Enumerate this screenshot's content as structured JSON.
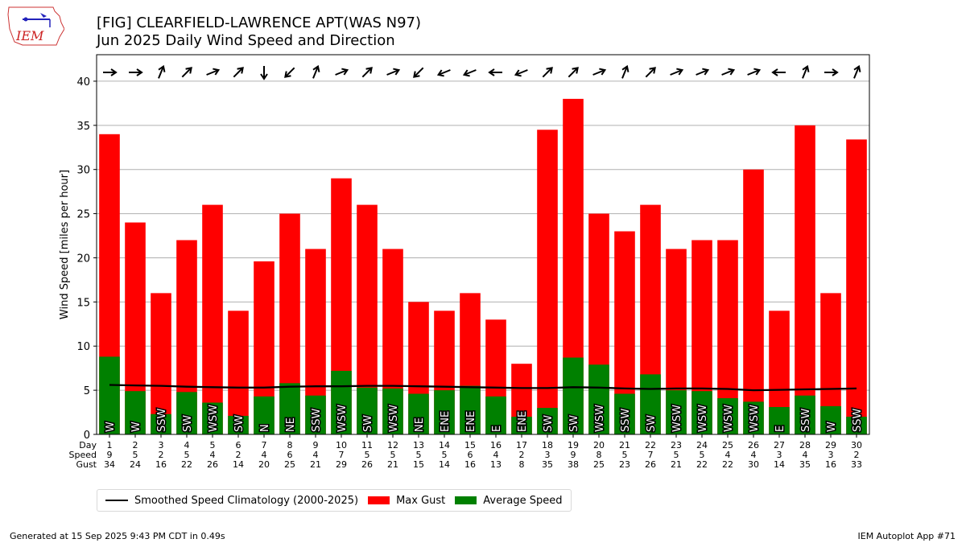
{
  "header": {
    "title_line1": "[FIG] CLEARFIELD-LAWRENCE APT(WAS N97)",
    "title_line2": "Jun 2025 Daily Wind Speed and Direction",
    "logo_text": "IEM"
  },
  "footer": {
    "left": "Generated at 15 Sep 2025 9:43 PM CDT in 0.49s",
    "right": "IEM Autoplot App #71"
  },
  "legend": {
    "climatology": "Smoothed Speed Climatology (2000-2025)",
    "gust": "Max Gust",
    "average": "Average Speed"
  },
  "chart_data": {
    "type": "bar",
    "ylabel": "Wind Speed [miles per hour]",
    "ylim": [
      0,
      43
    ],
    "yticks": [
      0,
      5,
      10,
      15,
      20,
      25,
      30,
      35,
      40
    ],
    "grid": true,
    "legend_position": "bottom",
    "row_labels": [
      "Day",
      "Speed",
      "Gust"
    ],
    "days": [
      1,
      2,
      3,
      4,
      5,
      6,
      7,
      8,
      9,
      10,
      11,
      12,
      13,
      14,
      15,
      16,
      17,
      18,
      19,
      20,
      21,
      22,
      23,
      24,
      25,
      26,
      27,
      28,
      29,
      30
    ],
    "speed_labels": [
      9,
      5,
      2,
      5,
      4,
      2,
      4,
      6,
      4,
      7,
      5,
      5,
      5,
      5,
      6,
      4,
      2,
      3,
      9,
      8,
      5,
      7,
      5,
      5,
      4,
      4,
      3,
      4,
      3,
      2
    ],
    "avg_speed": [
      8.8,
      4.9,
      2.3,
      4.8,
      3.6,
      2.1,
      4.3,
      5.8,
      4.4,
      7.2,
      5.3,
      5.2,
      4.6,
      5.0,
      5.5,
      4.3,
      2.0,
      3.0,
      8.7,
      7.9,
      4.6,
      6.8,
      5.0,
      4.9,
      4.1,
      3.7,
      3.1,
      4.4,
      3.2,
      2.0
    ],
    "max_gust": [
      34,
      24,
      16,
      22,
      26,
      14,
      19.6,
      25,
      21,
      29,
      26,
      21,
      15,
      14,
      16,
      13,
      8,
      34.5,
      38,
      25,
      23,
      26,
      21,
      22,
      22,
      30,
      14,
      35,
      16,
      33.4
    ],
    "gust_labels": [
      34,
      24,
      16,
      22,
      26,
      14,
      20,
      25,
      21,
      29,
      26,
      21,
      15,
      14,
      16,
      13,
      8,
      35,
      38,
      25,
      23,
      26,
      21,
      22,
      22,
      30,
      14,
      35,
      16,
      33
    ],
    "direction_labels": [
      "W",
      "W",
      "SSW",
      "SW",
      "WSW",
      "SW",
      "N",
      "NE",
      "SSW",
      "WSW",
      "SW",
      "WSW",
      "NE",
      "ENE",
      "ENE",
      "E",
      "ENE",
      "SW",
      "SW",
      "WSW",
      "SSW",
      "SW",
      "WSW",
      "WSW",
      "WSW",
      "WSW",
      "E",
      "SSW",
      "W",
      "SSW"
    ],
    "direction_degrees": [
      270,
      270,
      202,
      225,
      248,
      225,
      0,
      45,
      202,
      248,
      225,
      248,
      45,
      68,
      68,
      90,
      68,
      225,
      225,
      248,
      202,
      225,
      248,
      248,
      248,
      248,
      90,
      202,
      270,
      202
    ],
    "climatology": [
      5.6,
      5.55,
      5.5,
      5.4,
      5.35,
      5.3,
      5.3,
      5.4,
      5.45,
      5.45,
      5.5,
      5.5,
      5.45,
      5.4,
      5.35,
      5.3,
      5.25,
      5.25,
      5.35,
      5.3,
      5.2,
      5.15,
      5.2,
      5.2,
      5.15,
      5.0,
      5.05,
      5.1,
      5.15,
      5.2
    ],
    "colors": {
      "gust": "#ff0000",
      "average": "#008000",
      "climatology": "#000000"
    }
  }
}
